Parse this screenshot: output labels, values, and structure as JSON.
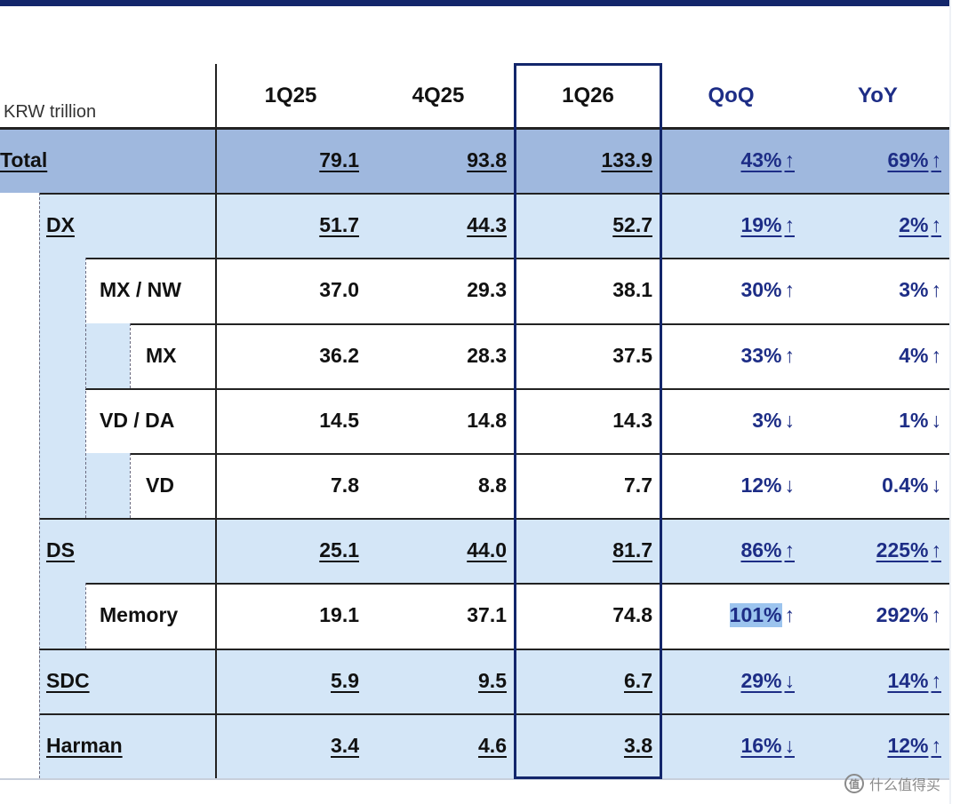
{
  "unit_label": "KRW trillion",
  "columns": [
    "1Q25",
    "4Q25",
    "1Q26",
    "QoQ",
    "YoY"
  ],
  "up_arrow": "↑",
  "down_arrow": "↓",
  "rows": [
    {
      "label": "Total",
      "level": 0,
      "values": [
        "79.1",
        "93.8",
        "133.9"
      ],
      "qoq": "43%",
      "qoq_dir": "up",
      "yoy": "69%",
      "yoy_dir": "up",
      "underline": true
    },
    {
      "label": "DX",
      "level": 1,
      "values": [
        "51.7",
        "44.3",
        "52.7"
      ],
      "qoq": "19%",
      "qoq_dir": "up",
      "yoy": "2%",
      "yoy_dir": "up",
      "underline": true
    },
    {
      "label": "MX / NW",
      "level": 2,
      "values": [
        "37.0",
        "29.3",
        "38.1"
      ],
      "qoq": "30%",
      "qoq_dir": "up",
      "yoy": "3%",
      "yoy_dir": "up",
      "underline": false
    },
    {
      "label": "MX",
      "level": 3,
      "values": [
        "36.2",
        "28.3",
        "37.5"
      ],
      "qoq": "33%",
      "qoq_dir": "up",
      "yoy": "4%",
      "yoy_dir": "up",
      "underline": false
    },
    {
      "label": "VD / DA",
      "level": 2,
      "values": [
        "14.5",
        "14.8",
        "14.3"
      ],
      "qoq": "3%",
      "qoq_dir": "down",
      "yoy": "1%",
      "yoy_dir": "down",
      "underline": false
    },
    {
      "label": "VD",
      "level": 3,
      "values": [
        "7.8",
        "8.8",
        "7.7"
      ],
      "qoq": "12%",
      "qoq_dir": "down",
      "yoy": "0.4%",
      "yoy_dir": "down",
      "underline": false
    },
    {
      "label": "DS",
      "level": 1,
      "values": [
        "25.1",
        "44.0",
        "81.7"
      ],
      "qoq": "86%",
      "qoq_dir": "up",
      "yoy": "225%",
      "yoy_dir": "up",
      "underline": true
    },
    {
      "label": "Memory",
      "level": 2,
      "values": [
        "19.1",
        "37.1",
        "74.8"
      ],
      "qoq": "101%",
      "qoq_dir": "up",
      "yoy": "292%",
      "yoy_dir": "up",
      "underline": false
    },
    {
      "label": "SDC",
      "level": 1,
      "values": [
        "5.9",
        "9.5",
        "6.7"
      ],
      "qoq": "29%",
      "qoq_dir": "down",
      "yoy": "14%",
      "yoy_dir": "up",
      "underline": true
    },
    {
      "label": "Harman",
      "level": 1,
      "values": [
        "3.4",
        "4.6",
        "3.8"
      ],
      "qoq": "16%",
      "qoq_dir": "down",
      "yoy": "12%",
      "yoy_dir": "up",
      "underline": true
    }
  ],
  "watermark": "什么值得买",
  "watermark_icon": "值",
  "colors": {
    "header_band": "#9fb8de",
    "l1_band": "#d4e6f7",
    "frame": "#13266b",
    "highlight": "#9cc4ee",
    "pct_text": "#1d2d86"
  }
}
